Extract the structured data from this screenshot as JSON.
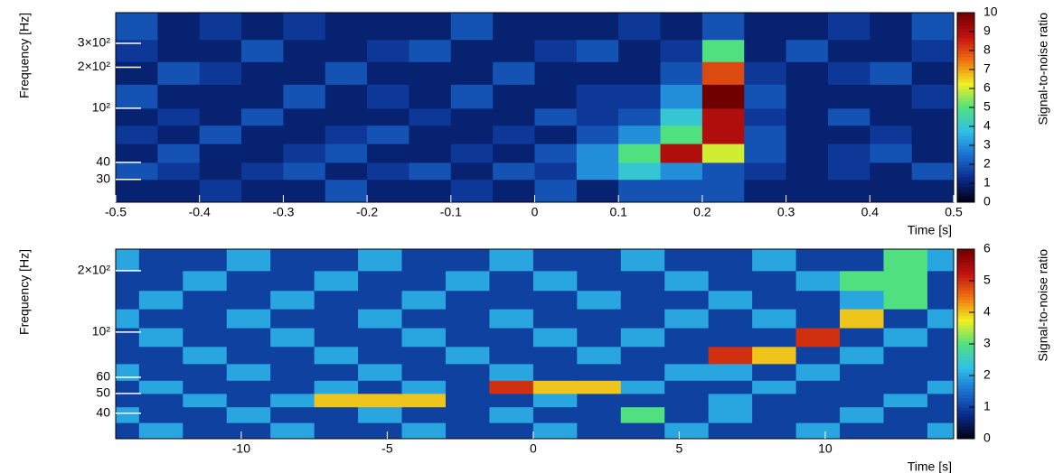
{
  "chart_data": [
    {
      "type": "heatmap",
      "xlabel": "Time [s]",
      "ylabel": "Frequency [Hz]",
      "colorbar_label": "Signal-to-noise ratio",
      "log_y": true,
      "xlim": [
        -0.5,
        0.5
      ],
      "xticks": [
        -0.5,
        -0.4,
        -0.3,
        -0.2,
        -0.1,
        0,
        0.1,
        0.2,
        0.3,
        0.4,
        0.5
      ],
      "ylim": [
        20.4,
        504
      ],
      "yticks": [
        30,
        40,
        {
          "value": 100,
          "label": "10²"
        },
        {
          "value": 200,
          "label": "2×10²"
        },
        {
          "value": 300,
          "label": "3×10²"
        }
      ],
      "zlim": [
        0,
        10
      ],
      "zticks": [
        0,
        1,
        2,
        3,
        4,
        5,
        6,
        7,
        8,
        9,
        10
      ],
      "colorscale": [
        "#000010",
        "#0a2a8a",
        "#1a6fd0",
        "#30c0e8",
        "#50e080",
        "#f0f020",
        "#f07010",
        "#c01010",
        "#700000"
      ],
      "xbins": [
        -0.5,
        -0.45,
        -0.4,
        -0.35,
        -0.3,
        -0.25,
        -0.2,
        -0.15,
        -0.1,
        -0.05,
        0,
        0.05,
        0.1,
        0.15,
        0.2,
        0.25,
        0.3,
        0.35,
        0.4,
        0.45,
        0.5
      ],
      "ybins": [
        20.4,
        30,
        40,
        55,
        75,
        100,
        150,
        220,
        320,
        504
      ],
      "z": [
        [
          1,
          1,
          1.5,
          1,
          1,
          2,
          1,
          1,
          1.5,
          1,
          2,
          1,
          2,
          2,
          2,
          1,
          1,
          1,
          1,
          1
        ],
        [
          2,
          1.5,
          1,
          1.5,
          2,
          1,
          1.5,
          2,
          1,
          2,
          1.5,
          3,
          4,
          3,
          2,
          1.5,
          1,
          1.5,
          1,
          2
        ],
        [
          1,
          2,
          1,
          1,
          1.5,
          2,
          1,
          1,
          1.5,
          1,
          2,
          3,
          5,
          9,
          6,
          2,
          1,
          1.5,
          2,
          1
        ],
        [
          1.5,
          1,
          2,
          1,
          1,
          1.5,
          2,
          1,
          1,
          1.5,
          1,
          2,
          3,
          5,
          9,
          2,
          1,
          1,
          1.5,
          1
        ],
        [
          1,
          1.5,
          1,
          2,
          1,
          1,
          1,
          1.5,
          1,
          1,
          2,
          1.5,
          2,
          4,
          9,
          1.5,
          1,
          2,
          1,
          1
        ],
        [
          2,
          1,
          1,
          1,
          2,
          1,
          1.5,
          1,
          2,
          1,
          1,
          1.5,
          1.5,
          3,
          10,
          2,
          1,
          1,
          1,
          1.5
        ],
        [
          1,
          2,
          1.5,
          1,
          1,
          2,
          1,
          1,
          1,
          2,
          1,
          1,
          1,
          2,
          8,
          1.5,
          1,
          1.5,
          2,
          1
        ],
        [
          1.5,
          1,
          1,
          2,
          1,
          1,
          1.5,
          2,
          1,
          1,
          1.5,
          2,
          1,
          1.5,
          5,
          1,
          2,
          1,
          1,
          1.5
        ],
        [
          2,
          1,
          1.5,
          1,
          1.5,
          1,
          1,
          1,
          2,
          1,
          1,
          1,
          1.5,
          1,
          2,
          1,
          1,
          1.5,
          1,
          2
        ]
      ]
    },
    {
      "type": "heatmap",
      "xlabel": "Time [s]",
      "ylabel": "Frequency [Hz]",
      "colorbar_label": "Signal-to-noise ratio",
      "log_y": true,
      "xlim": [
        -14.3,
        14.4
      ],
      "xticks": [
        -10,
        -5,
        0,
        5,
        10
      ],
      "ylim": [
        30,
        255
      ],
      "yticks": [
        40,
        50,
        60,
        {
          "value": 100,
          "label": "10²"
        },
        {
          "value": 200,
          "label": "2×10²"
        }
      ],
      "zlim": [
        0,
        6
      ],
      "zticks": [
        0,
        1,
        2,
        3,
        4,
        5,
        6
      ],
      "colorscale": [
        "#000010",
        "#0a2a8a",
        "#1a6fd0",
        "#30c0e8",
        "#50e080",
        "#f0f020",
        "#f07010",
        "#c01010",
        "#700000"
      ],
      "xbins": [
        -14.3,
        -13.5,
        -12,
        -10.5,
        -9,
        -7.5,
        -6,
        -4.5,
        -3,
        -1.5,
        0,
        1.5,
        3,
        4.5,
        6,
        7.5,
        9,
        10.5,
        12,
        13.5,
        14.4
      ],
      "ybins": [
        30,
        36,
        43,
        50,
        58,
        70,
        85,
        105,
        130,
        160,
        200,
        255
      ],
      "z": [
        [
          1,
          2,
          1,
          1,
          2,
          1,
          1,
          2,
          1,
          1,
          2,
          1,
          1,
          2,
          1,
          1,
          2,
          1,
          1,
          2
        ],
        [
          2,
          1,
          1,
          2,
          1,
          1,
          2,
          1,
          1,
          2,
          1,
          1,
          3,
          1,
          2,
          1,
          1,
          2,
          1,
          1
        ],
        [
          1,
          1,
          2,
          1,
          2,
          4,
          4,
          4,
          1,
          1,
          2,
          1,
          1,
          1,
          2,
          1,
          1,
          1,
          2,
          1
        ],
        [
          1,
          2,
          1,
          1,
          1,
          2,
          1,
          2,
          1,
          5,
          4,
          4,
          2,
          1,
          1,
          2,
          1,
          1,
          1,
          2
        ],
        [
          2,
          1,
          1,
          2,
          1,
          1,
          2,
          1,
          1,
          2,
          1,
          1,
          1,
          2,
          2,
          1,
          2,
          1,
          1,
          1
        ],
        [
          1,
          1,
          2,
          1,
          1,
          2,
          1,
          1,
          2,
          1,
          1,
          2,
          1,
          1,
          5,
          4,
          1,
          2,
          1,
          1
        ],
        [
          1,
          2,
          1,
          1,
          2,
          1,
          1,
          2,
          1,
          1,
          2,
          1,
          2,
          1,
          1,
          1,
          5,
          1,
          2,
          1
        ],
        [
          2,
          1,
          1,
          2,
          1,
          1,
          2,
          1,
          1,
          2,
          1,
          1,
          1,
          2,
          1,
          2,
          1,
          4,
          1,
          2
        ],
        [
          1,
          2,
          1,
          1,
          2,
          1,
          1,
          2,
          1,
          1,
          1,
          2,
          1,
          1,
          2,
          1,
          1,
          2,
          3,
          1
        ],
        [
          1,
          1,
          2,
          1,
          1,
          2,
          1,
          1,
          2,
          1,
          2,
          1,
          1,
          2,
          1,
          1,
          2,
          3,
          3,
          1
        ],
        [
          2,
          1,
          1,
          2,
          1,
          1,
          2,
          1,
          1,
          2,
          1,
          1,
          2,
          1,
          1,
          2,
          1,
          1,
          3,
          2
        ]
      ]
    }
  ]
}
